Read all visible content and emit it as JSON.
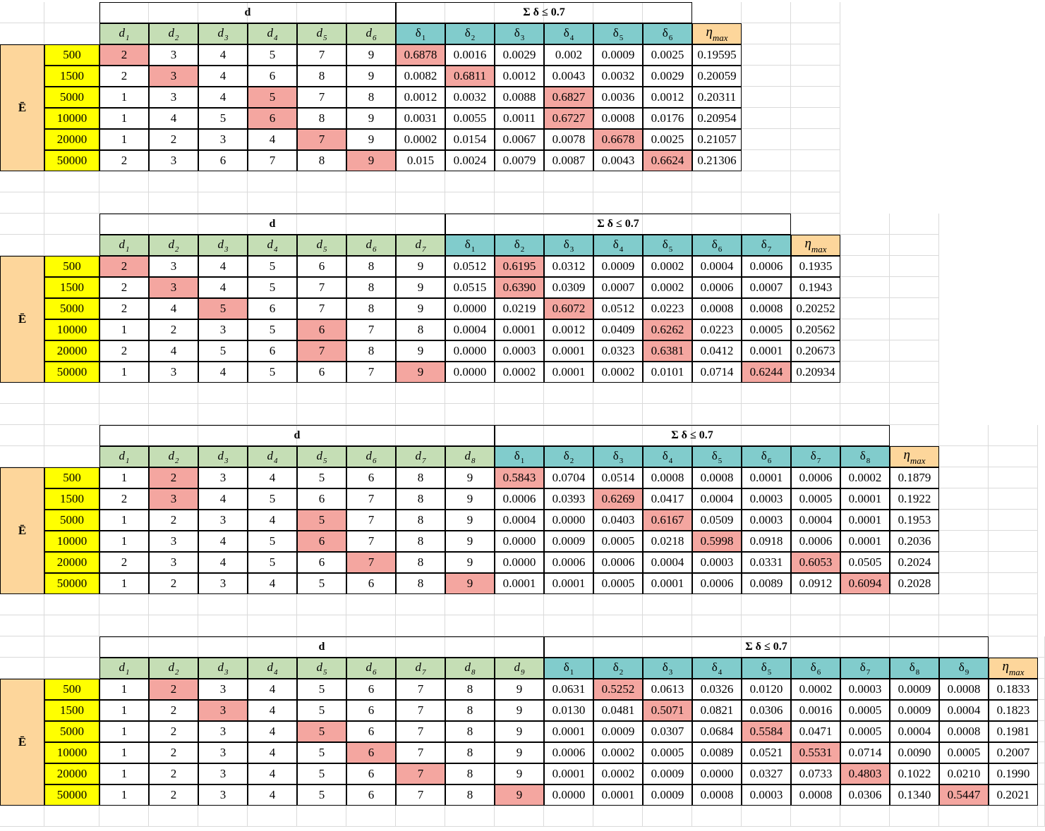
{
  "e_label": "Ē",
  "d_label": "d",
  "delta_label": "Σ δ ≤ 0.7",
  "eta_label": "η",
  "eta_sub": "max",
  "energies": [
    "500",
    "1500",
    "5000",
    "10000",
    "20000",
    "50000"
  ],
  "colors": {
    "d_header": "#c5deb5",
    "delta_header": "#81cccc",
    "eta_header": "#fdd69b",
    "energy_column": "#ffff00",
    "highlight": "#f4a6a0"
  },
  "tables": [
    {
      "n": 6,
      "rows": [
        {
          "d": [
            "2",
            "3",
            "4",
            "5",
            "7",
            "9"
          ],
          "delta": [
            "0.6878",
            "0.0016",
            "0.0029",
            "0.002",
            "0.0009",
            "0.0025"
          ],
          "eta": "0.19595",
          "hd": 1,
          "hdelta": 1
        },
        {
          "d": [
            "2",
            "3",
            "4",
            "6",
            "8",
            "9"
          ],
          "delta": [
            "0.0082",
            "0.6811",
            "0.0012",
            "0.0043",
            "0.0032",
            "0.0029"
          ],
          "eta": "0.20059",
          "hd": 2,
          "hdelta": 2
        },
        {
          "d": [
            "1",
            "3",
            "4",
            "5",
            "7",
            "8"
          ],
          "delta": [
            "0.0012",
            "0.0032",
            "0.0088",
            "0.6827",
            "0.0036",
            "0.0012"
          ],
          "eta": "0.20311",
          "hd": 4,
          "hdelta": 4
        },
        {
          "d": [
            "1",
            "4",
            "5",
            "6",
            "8",
            "9"
          ],
          "delta": [
            "0.0031",
            "0.0055",
            "0.0011",
            "0.6727",
            "0.0008",
            "0.0176"
          ],
          "eta": "0.20954",
          "hd": 4,
          "hdelta": 4
        },
        {
          "d": [
            "1",
            "2",
            "3",
            "4",
            "7",
            "9"
          ],
          "delta": [
            "0.0002",
            "0.0154",
            "0.0067",
            "0.0078",
            "0.6678",
            "0.0025"
          ],
          "eta": "0.21057",
          "hd": 5,
          "hdelta": 5
        },
        {
          "d": [
            "2",
            "3",
            "6",
            "7",
            "8",
            "9"
          ],
          "delta": [
            "0.015",
            "0.0024",
            "0.0079",
            "0.0087",
            "0.0043",
            "0.6624"
          ],
          "eta": "0.21306",
          "hd": 6,
          "hdelta": 6
        }
      ]
    },
    {
      "n": 7,
      "rows": [
        {
          "d": [
            "2",
            "3",
            "4",
            "5",
            "6",
            "8",
            "9"
          ],
          "delta": [
            "0.0512",
            "0.6195",
            "0.0312",
            "0.0009",
            "0.0002",
            "0.0004",
            "0.0006"
          ],
          "eta": "0.1935",
          "hd": 1,
          "hdelta": 2
        },
        {
          "d": [
            "2",
            "3",
            "4",
            "5",
            "7",
            "8",
            "9"
          ],
          "delta": [
            "0.0515",
            "0.6390",
            "0.0309",
            "0.0007",
            "0.0002",
            "0.0006",
            "0.0007"
          ],
          "eta": "0.1943",
          "hd": 2,
          "hdelta": 2
        },
        {
          "d": [
            "2",
            "4",
            "5",
            "6",
            "7",
            "8",
            "9"
          ],
          "delta": [
            "0.0000",
            "0.0219",
            "0.6072",
            "0.0512",
            "0.0223",
            "0.0008",
            "0.0008"
          ],
          "eta": "0.20252",
          "hd": 3,
          "hdelta": 3
        },
        {
          "d": [
            "1",
            "2",
            "3",
            "5",
            "6",
            "7",
            "8"
          ],
          "delta": [
            "0.0004",
            "0.0001",
            "0.0012",
            "0.0409",
            "0.6262",
            "0.0223",
            "0.0005"
          ],
          "eta": "0.20562",
          "hd": 5,
          "hdelta": 5
        },
        {
          "d": [
            "2",
            "4",
            "5",
            "6",
            "7",
            "8",
            "9"
          ],
          "delta": [
            "0.0000",
            "0.0003",
            "0.0001",
            "0.0323",
            "0.6381",
            "0.0412",
            "0.0001"
          ],
          "eta": "0.20673",
          "hd": 5,
          "hdelta": 5
        },
        {
          "d": [
            "1",
            "3",
            "4",
            "5",
            "6",
            "7",
            "9"
          ],
          "delta": [
            "0.0000",
            "0.0002",
            "0.0001",
            "0.0002",
            "0.0101",
            "0.0714",
            "0.6244"
          ],
          "eta": "0.20934",
          "hd": 7,
          "hdelta": 7
        }
      ]
    },
    {
      "n": 8,
      "rows": [
        {
          "d": [
            "1",
            "2",
            "3",
            "4",
            "5",
            "6",
            "8",
            "9"
          ],
          "delta": [
            "0.5843",
            "0.0704",
            "0.0514",
            "0.0008",
            "0.0008",
            "0.0001",
            "0.0006",
            "0.0002"
          ],
          "eta": "0.1879",
          "hd": 2,
          "hdelta": 1
        },
        {
          "d": [
            "2",
            "3",
            "4",
            "5",
            "6",
            "7",
            "8",
            "9"
          ],
          "delta": [
            "0.0006",
            "0.0393",
            "0.6269",
            "0.0417",
            "0.0004",
            "0.0003",
            "0.0005",
            "0.0001"
          ],
          "eta": "0.1922",
          "hd": 2,
          "hdelta": 3
        },
        {
          "d": [
            "1",
            "2",
            "3",
            "4",
            "5",
            "7",
            "8",
            "9"
          ],
          "delta": [
            "0.0004",
            "0.0000",
            "0.0403",
            "0.6167",
            "0.0509",
            "0.0003",
            "0.0004",
            "0.0001"
          ],
          "eta": "0.1953",
          "hd": 5,
          "hdelta": 4
        },
        {
          "d": [
            "1",
            "3",
            "4",
            "5",
            "6",
            "7",
            "8",
            "9"
          ],
          "delta": [
            "0.0000",
            "0.0009",
            "0.0005",
            "0.0218",
            "0.5998",
            "0.0918",
            "0.0006",
            "0.0001"
          ],
          "eta": "0.2036",
          "hd": 5,
          "hdelta": 5
        },
        {
          "d": [
            "2",
            "3",
            "4",
            "5",
            "6",
            "7",
            "8",
            "9"
          ],
          "delta": [
            "0.0000",
            "0.0006",
            "0.0006",
            "0.0004",
            "0.0003",
            "0.0331",
            "0.6053",
            "0.0505"
          ],
          "eta": "0.2024",
          "hd": 6,
          "hdelta": 7
        },
        {
          "d": [
            "1",
            "2",
            "3",
            "4",
            "5",
            "6",
            "8",
            "9"
          ],
          "delta": [
            "0.0001",
            "0.0001",
            "0.0005",
            "0.0001",
            "0.0006",
            "0.0089",
            "0.0912",
            "0.6094"
          ],
          "eta": "0.2028",
          "hd": 8,
          "hdelta": 8
        }
      ]
    },
    {
      "n": 9,
      "rows": [
        {
          "d": [
            "1",
            "2",
            "3",
            "4",
            "5",
            "6",
            "7",
            "8",
            "9"
          ],
          "delta": [
            "0.0631",
            "0.5252",
            "0.0613",
            "0.0326",
            "0.0120",
            "0.0002",
            "0.0003",
            "0.0009",
            "0.0008"
          ],
          "eta": "0.1833",
          "hd": 2,
          "hdelta": 2
        },
        {
          "d": [
            "1",
            "2",
            "3",
            "4",
            "5",
            "6",
            "7",
            "8",
            "9"
          ],
          "delta": [
            "0.0130",
            "0.0481",
            "0.5071",
            "0.0821",
            "0.0306",
            "0.0016",
            "0.0005",
            "0.0009",
            "0.0004"
          ],
          "eta": "0.1823",
          "hd": 3,
          "hdelta": 3
        },
        {
          "d": [
            "1",
            "2",
            "3",
            "4",
            "5",
            "6",
            "7",
            "8",
            "9"
          ],
          "delta": [
            "0.0001",
            "0.0009",
            "0.0307",
            "0.0684",
            "0.5584",
            "0.0471",
            "0.0005",
            "0.0004",
            "0.0008"
          ],
          "eta": "0.1981",
          "hd": 5,
          "hdelta": 5
        },
        {
          "d": [
            "1",
            "2",
            "3",
            "4",
            "5",
            "6",
            "7",
            "8",
            "9"
          ],
          "delta": [
            "0.0006",
            "0.0002",
            "0.0005",
            "0.0089",
            "0.0521",
            "0.5531",
            "0.0714",
            "0.0090",
            "0.0005"
          ],
          "eta": "0.2007",
          "hd": 6,
          "hdelta": 6
        },
        {
          "d": [
            "1",
            "2",
            "3",
            "4",
            "5",
            "6",
            "7",
            "8",
            "9"
          ],
          "delta": [
            "0.0001",
            "0.0002",
            "0.0009",
            "0.0000",
            "0.0327",
            "0.0733",
            "0.4803",
            "0.1022",
            "0.0210"
          ],
          "eta": "0.1990",
          "hd": 7,
          "hdelta": 7
        },
        {
          "d": [
            "1",
            "2",
            "3",
            "4",
            "5",
            "6",
            "7",
            "8",
            "9"
          ],
          "delta": [
            "0.0000",
            "0.0001",
            "0.0009",
            "0.0008",
            "0.0003",
            "0.0008",
            "0.0306",
            "0.1340",
            "0.5447"
          ],
          "eta": "0.2021",
          "hd": 9,
          "hdelta": 9
        }
      ]
    }
  ]
}
